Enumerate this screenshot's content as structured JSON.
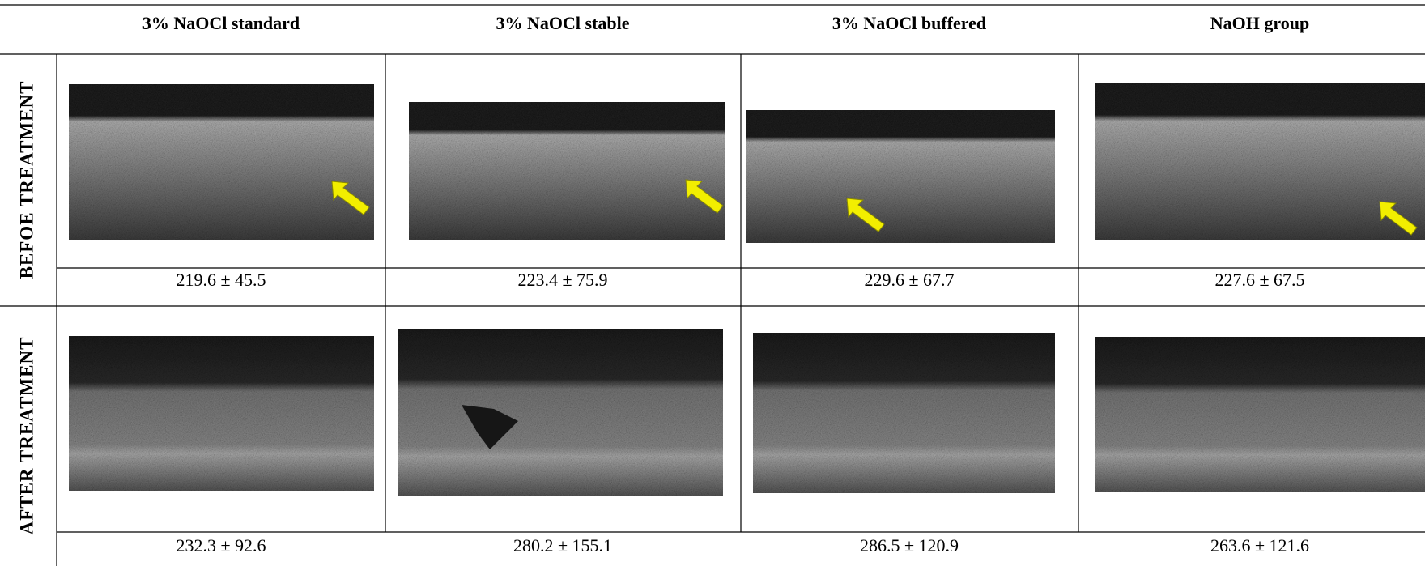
{
  "header": {
    "columns": [
      "3% NaOCl standard",
      "3% NaOCl stable",
      "3% NaOCl buffered",
      "NaOH group"
    ]
  },
  "rows": [
    {
      "label": "BEFOE TREATMENT",
      "values": [
        "219.6 ± 45.5",
        "223.4 ± 75.9",
        "229.6 ± 67.7",
        "227.6 ± 67.5"
      ]
    },
    {
      "label": "AFTER TREATMENT",
      "values": [
        "232.3 ± 92.6",
        "280.2 ± 155.1",
        "286.5 ± 120.9",
        "263.6 ± 121.6"
      ]
    }
  ]
}
